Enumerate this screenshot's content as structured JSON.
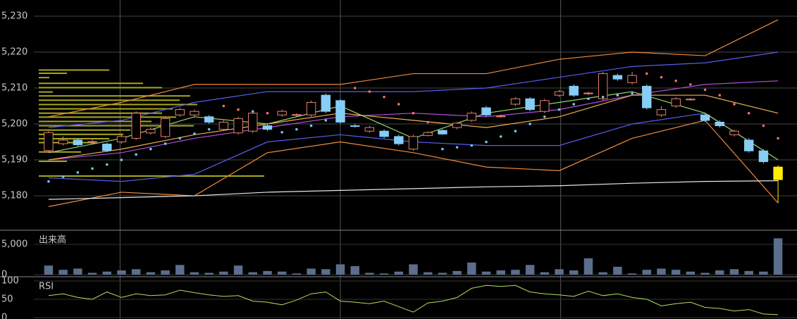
{
  "chart_data": [
    {
      "type": "candlestick",
      "xlim": [
        -3.33,
        51.3
      ],
      "xgrid": [
        4.9,
        20,
        35.1
      ],
      "ylim": [
        5170.6,
        5234.5
      ],
      "yticks": [
        {
          "value": 5180,
          "label": "5,180"
        },
        {
          "value": 5190,
          "label": "5,190"
        },
        {
          "value": 5200,
          "label": "5,200"
        },
        {
          "value": 5210,
          "label": "5,210"
        },
        {
          "value": 5220,
          "label": "5,220"
        },
        {
          "value": 5230,
          "label": "5,230"
        }
      ],
      "up_color": "#e8806e",
      "down_color": "#87cdf5",
      "last_color": "#ffee00",
      "open": [
        5192.6,
        5194.5,
        5195.5,
        5195,
        5194.4,
        5195,
        5196,
        5197.5,
        5196.5,
        5202.5,
        5202.5,
        5202,
        5198.5,
        5197.5,
        5198,
        5199.5,
        5202.5,
        5202.5,
        5202.5,
        5208,
        5206.5,
        5199.5,
        5198,
        5198,
        5196.5,
        5193,
        5196.8,
        5198.2,
        5199,
        5201,
        5204.5,
        5202,
        5205.5,
        5207,
        5203.5,
        5208,
        5210.5,
        5208.5,
        5207,
        5213.5,
        5211.5,
        5210.5,
        5202.5,
        5205,
        5206.8,
        5202.5,
        5200.5,
        5197,
        5195.5,
        5192.5,
        5188
      ],
      "high": [
        5198,
        5196.5,
        5196,
        5195.8,
        5194.8,
        5197,
        5203.5,
        5199,
        5202,
        5204.5,
        5204,
        5202.5,
        5201,
        5202,
        5203.5,
        5200,
        5204,
        5203,
        5206.5,
        5208.5,
        5207,
        5200,
        5199.5,
        5198.5,
        5197,
        5197,
        5198,
        5198.5,
        5200.5,
        5203.5,
        5205,
        5202.6,
        5207.5,
        5207.5,
        5207,
        5209.5,
        5211,
        5209,
        5214.5,
        5214,
        5214.5,
        5211,
        5205,
        5207.5,
        5207.2,
        5203,
        5201,
        5198.5,
        5196,
        5193,
        5188.5
      ],
      "low": [
        5192,
        5194,
        5193.8,
        5194.5,
        5192.2,
        5194.5,
        5195.5,
        5197,
        5196,
        5202,
        5202,
        5200,
        5198,
        5197,
        5197.5,
        5198,
        5202,
        5202,
        5202,
        5203,
        5200,
        5199,
        5197.5,
        5196,
        5194,
        5192.5,
        5196.5,
        5197,
        5198.5,
        5200.5,
        5202,
        5201.7,
        5205,
        5203.5,
        5203,
        5207.5,
        5207.5,
        5208,
        5206.5,
        5212,
        5211,
        5204,
        5202,
        5204.5,
        5206.5,
        5200.5,
        5199,
        5196.5,
        5192,
        5189,
        5178
      ],
      "close": [
        5197.6,
        5195.5,
        5194.2,
        5195.1,
        5192.6,
        5196.5,
        5203,
        5198.5,
        5201.5,
        5204,
        5203.5,
        5200.5,
        5200.5,
        5201.5,
        5203,
        5198.5,
        5203.5,
        5202.6,
        5206,
        5203.5,
        5200.5,
        5199.3,
        5199,
        5196.5,
        5194.5,
        5196.5,
        5197.6,
        5197.2,
        5200.2,
        5203,
        5202.5,
        5202.2,
        5207,
        5204,
        5206.5,
        5209,
        5208,
        5208.6,
        5214,
        5212.5,
        5213.5,
        5204.5,
        5204,
        5207,
        5206.9,
        5201,
        5199.5,
        5198,
        5192.5,
        5189.5,
        5184.5
      ],
      "lines": [
        {
          "color": "#f08a3c",
          "x": [
            0,
            5,
            10,
            15,
            20,
            25,
            30,
            35,
            40,
            45,
            50
          ],
          "values": [
            5202,
            5206,
            5211,
            5211,
            5211,
            5214,
            5214,
            5218,
            5220,
            5219,
            5229
          ]
        },
        {
          "color": "#5a5cf0",
          "x": [
            0,
            5,
            10,
            15,
            20,
            25,
            30,
            35,
            40,
            45,
            50
          ],
          "values": [
            5199,
            5201,
            5206,
            5209,
            5209,
            5209,
            5210,
            5213,
            5216,
            5217,
            5220
          ]
        },
        {
          "color": "#b050e0",
          "x": [
            0,
            5,
            10,
            15,
            20,
            25,
            30,
            35,
            40,
            45,
            50
          ],
          "values": [
            5190,
            5192,
            5196,
            5199,
            5202,
            5203,
            5202,
            5204,
            5208,
            5211,
            5212
          ]
        },
        {
          "color": "#f0b050",
          "x": [
            0,
            5,
            10,
            15,
            20,
            25,
            30,
            35,
            40,
            45,
            50
          ],
          "values": [
            5190,
            5193,
            5197,
            5200,
            5203,
            5201,
            5199,
            5202,
            5208,
            5208,
            5203
          ]
        },
        {
          "color": "#5a5cf0",
          "x": [
            0,
            5,
            10,
            15,
            20,
            25,
            30,
            35,
            40,
            45,
            50
          ],
          "values": [
            5185,
            5184,
            5186,
            5195,
            5197,
            5195,
            5194,
            5194,
            5200,
            5203,
            5190
          ]
        },
        {
          "color": "#f08a3c",
          "x": [
            0,
            5,
            10,
            15,
            20,
            25,
            30,
            35,
            40,
            45,
            50
          ],
          "values": [
            5177,
            5181,
            5180,
            5192,
            5195,
            5192,
            5188,
            5187,
            5196,
            5201,
            5178
          ]
        },
        {
          "color": "#9ad46a",
          "x": [
            0,
            5,
            10,
            15,
            20,
            25,
            30,
            35,
            40,
            45,
            50
          ],
          "values": [
            5192,
            5196,
            5202,
            5200,
            5205,
            5196,
            5203,
            5206,
            5209,
            5203,
            5190
          ]
        },
        {
          "color": "#e8e8e8",
          "x": [
            0,
            5,
            10,
            15,
            20,
            25,
            30,
            35,
            40,
            45,
            50
          ],
          "values": [
            5179,
            5179.5,
            5180,
            5181,
            5181.5,
            5182,
            5182.5,
            5182.8,
            5183.5,
            5184,
            5184.2
          ]
        }
      ],
      "sar": {
        "above_color": "#f07070",
        "below_color": "#70c8f0",
        "values": [
          5184,
          5185.3,
          5186.5,
          5187.6,
          5188.7,
          5190,
          5191.5,
          5193,
          5194.5,
          5196,
          5197.3,
          5198.5,
          5205,
          5204,
          5203.5,
          5203,
          5197.7,
          5198.5,
          5199.5,
          5201,
          5204.5,
          5210,
          5209,
          5207.5,
          5205.5,
          5203,
          5200.5,
          5193,
          5193.5,
          5194,
          5195,
          5196.5,
          5198,
          5200,
          5202,
          5204,
          5205.5,
          5207,
          5207.5,
          5208,
          5208.5,
          5214,
          5213,
          5212,
          5211,
          5209.5,
          5208,
          5205.5,
          5203,
          5199.5,
          5196
        ]
      },
      "volume_profile": {
        "color": "#a8a820",
        "scale_max": 1131,
        "prices": [
          5215,
          5214.1,
          5212.9,
          5211.3,
          5210.1,
          5208.9,
          5207.8,
          5206.6,
          5205.4,
          5204.2,
          5203,
          5201.9,
          5200.7,
          5199.5,
          5198.3,
          5197.1,
          5195.9,
          5194.8,
          5192.2,
          5189.6,
          5185.5
        ],
        "values": [
          100,
          40,
          15,
          148,
          175,
          20,
          215,
          200,
          225,
          190,
          175,
          195,
          160,
          220,
          130,
          120,
          100,
          80,
          60,
          40,
          320
        ]
      }
    },
    {
      "type": "bar",
      "title": "出来高",
      "color": "#5b6f8c",
      "xlim": [
        -3.33,
        51.3
      ],
      "ylim": [
        -233,
        7209
      ],
      "yticks": [
        0,
        {
          "value": 5000,
          "label": "5,000"
        }
      ],
      "values": [
        1500,
        800,
        1000,
        300,
        500,
        700,
        900,
        400,
        700,
        1600,
        400,
        300,
        500,
        1500,
        400,
        600,
        500,
        200,
        1000,
        900,
        1700,
        1400,
        300,
        200,
        500,
        1700,
        400,
        300,
        600,
        2000,
        500,
        700,
        800,
        1600,
        400,
        900,
        700,
        2700,
        400,
        1300,
        200,
        800,
        1000,
        800,
        500,
        300,
        700,
        900,
        600,
        500,
        6000
      ]
    },
    {
      "type": "line",
      "title": "RSI",
      "color": "#b0e060",
      "xlim": [
        -3.33,
        51.3
      ],
      "ylim": [
        -3.8,
        109.6
      ],
      "yticks": [
        0,
        50,
        100
      ],
      "values": [
        60,
        65,
        55,
        50,
        70,
        55,
        65,
        60,
        62,
        75,
        68,
        62,
        58,
        60,
        45,
        42,
        35,
        48,
        65,
        70,
        45,
        42,
        38,
        45,
        30,
        15,
        40,
        45,
        55,
        80,
        88,
        85,
        88,
        70,
        65,
        62,
        58,
        72,
        60,
        65,
        55,
        50,
        32,
        38,
        42,
        28,
        25,
        18,
        22,
        10,
        8
      ]
    }
  ]
}
